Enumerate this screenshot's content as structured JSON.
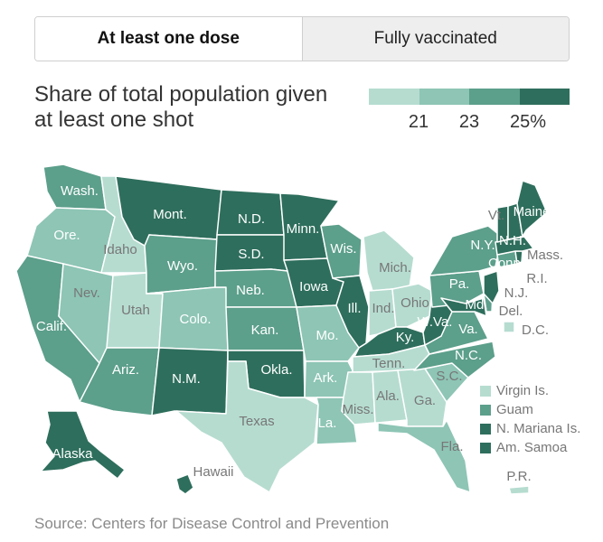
{
  "tabs": [
    {
      "label": "At least one dose",
      "active": true
    },
    {
      "label": "Fully vaccinated",
      "active": false
    }
  ],
  "title": "Share of total population given at least one shot",
  "legend": {
    "colors": [
      "#b6dcd0",
      "#8ec5b5",
      "#5c9f8b",
      "#2e6e5c"
    ],
    "ticks": [
      "21",
      "23",
      "25%"
    ]
  },
  "states": {
    "wa": "Wash.",
    "or": "Ore.",
    "ca": "Calif.",
    "id": "Idaho",
    "nv": "Nev.",
    "mt": "Mont.",
    "wy": "Wyo.",
    "ut": "Utah",
    "az": "Ariz.",
    "co": "Colo.",
    "nm": "N.M.",
    "nd": "N.D.",
    "sd": "S.D.",
    "ne": "Neb.",
    "ks": "Kan.",
    "ok": "Okla.",
    "tx": "Texas",
    "mn": "Minn.",
    "ia": "Iowa",
    "mo": "Mo.",
    "ar": "Ark.",
    "la": "La.",
    "wi": "Wis.",
    "il": "Ill.",
    "mi": "Mich.",
    "in": "Ind.",
    "oh": "Ohio",
    "ky": "Ky.",
    "tn": "Tenn.",
    "ms": "Miss.",
    "al": "Ala.",
    "ga": "Ga.",
    "fl": "Fla.",
    "sc": "S.C.",
    "nc": "N.C.",
    "va": "Va.",
    "wv": "W.Va.",
    "pa": "Pa.",
    "ny": "N.Y.",
    "vt": "Vt.",
    "nh": "N.H.",
    "me": "Maine",
    "ma": "Mass.",
    "ri": "R.I.",
    "ct": "Conn.",
    "nj": "N.J.",
    "de": "Del.",
    "md": "Md.",
    "dc": "D.C.",
    "ak": "Alaska",
    "hi": "Hawaii",
    "pr": "P.R."
  },
  "territories": [
    {
      "label": "Virgin Is.",
      "color": "#b6dcd0"
    },
    {
      "label": "Guam",
      "color": "#5c9f8b"
    },
    {
      "label": "N. Mariana Is.",
      "color": "#2e6e5c"
    },
    {
      "label": "Am. Samoa",
      "color": "#2e6e5c"
    }
  ],
  "source": "Source: Centers for Disease Control and Prevention"
}
